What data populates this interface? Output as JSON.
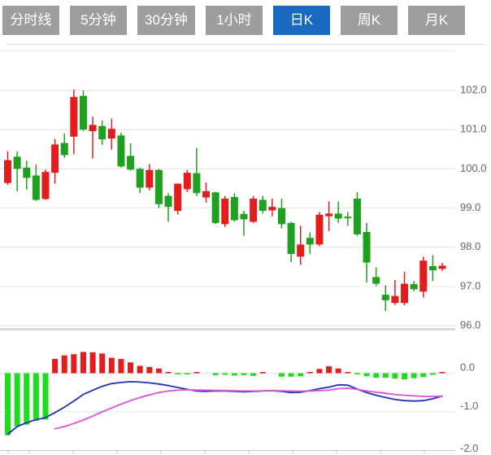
{
  "tabs": {
    "items": [
      {
        "label": "分时线",
        "active": false
      },
      {
        "label": "5分钟",
        "active": false
      },
      {
        "label": "30分钟",
        "active": false
      },
      {
        "label": "1小时",
        "active": false
      },
      {
        "label": "日K",
        "active": true
      },
      {
        "label": "周K",
        "active": false
      },
      {
        "label": "月K",
        "active": false
      }
    ]
  },
  "colors": {
    "tab_inactive_bg": "#9e9e9e",
    "tab_active_bg": "#1769c2",
    "tab_text": "#ffffff",
    "up_candle": "#e31d1d",
    "down_candle": "#1fa11f",
    "macd_bar_up": "#e31d1d",
    "macd_bar_down": "#1edc1e",
    "dif_line": "#2331b4",
    "dea_line": "#dc52dc",
    "grid_line": "#e3e3e3",
    "panel_separator": "#d9d9d9",
    "axis_line": "#c9c9c9",
    "axis_text": "#666666"
  },
  "chart_data": {
    "type": "candlestick",
    "title": "",
    "legend": "none",
    "grid": true,
    "price_panel": {
      "axis_position": "right",
      "tick_labels": [
        "102.0",
        "101.0",
        "100.0",
        "99.0",
        "98.0",
        "97.0",
        "96.0"
      ],
      "tick_values": [
        102.0,
        101.0,
        100.0,
        99.0,
        98.0,
        97.0,
        96.0
      ],
      "range": [
        95.8,
        103.1
      ],
      "candles_ochl_note": "arrays are [open,close,high,low]; close>open drawn red (up), close<open drawn green (down)",
      "candles": [
        [
          99.64,
          100.22,
          100.45,
          99.59
        ],
        [
          100.31,
          100.0,
          100.44,
          99.43
        ],
        [
          100.03,
          99.77,
          100.21,
          99.47
        ],
        [
          99.83,
          99.21,
          100.11,
          99.18
        ],
        [
          99.23,
          99.92,
          99.98,
          99.21
        ],
        [
          99.9,
          100.62,
          100.76,
          99.62
        ],
        [
          100.66,
          100.35,
          100.9,
          100.28
        ],
        [
          100.82,
          101.83,
          102.02,
          100.37
        ],
        [
          101.86,
          101.0,
          102.0,
          100.96
        ],
        [
          100.96,
          101.12,
          101.33,
          100.26
        ],
        [
          101.09,
          100.75,
          101.23,
          100.61
        ],
        [
          100.77,
          101.02,
          101.28,
          100.49
        ],
        [
          100.85,
          100.06,
          100.92,
          100.03
        ],
        [
          100.33,
          99.98,
          100.65,
          99.95
        ],
        [
          100.0,
          99.52,
          100.03,
          99.38
        ],
        [
          99.52,
          99.97,
          100.12,
          99.45
        ],
        [
          99.97,
          99.1,
          100.0,
          99.0
        ],
        [
          99.31,
          99.03,
          99.38,
          98.65
        ],
        [
          98.93,
          99.62,
          99.63,
          98.83
        ],
        [
          99.48,
          99.9,
          99.97,
          99.41
        ],
        [
          99.89,
          99.38,
          100.53,
          99.31
        ],
        [
          99.27,
          99.43,
          99.65,
          99.14
        ],
        [
          99.4,
          98.62,
          99.41,
          98.59
        ],
        [
          98.59,
          99.24,
          99.31,
          98.52
        ],
        [
          99.28,
          98.69,
          99.38,
          98.65
        ],
        [
          98.85,
          98.71,
          98.93,
          98.29
        ],
        [
          98.65,
          99.24,
          99.31,
          98.62
        ],
        [
          99.21,
          98.93,
          99.31,
          98.86
        ],
        [
          98.94,
          99.03,
          99.24,
          98.79
        ],
        [
          99.0,
          98.59,
          99.24,
          98.48
        ],
        [
          98.62,
          97.83,
          98.65,
          97.62
        ],
        [
          97.76,
          98.07,
          98.55,
          97.55
        ],
        [
          98.24,
          98.07,
          98.38,
          97.83
        ],
        [
          98.07,
          98.83,
          98.9,
          98.03
        ],
        [
          98.79,
          98.86,
          99.17,
          98.41
        ],
        [
          98.86,
          98.73,
          99.17,
          98.62
        ],
        [
          98.78,
          98.74,
          98.9,
          98.55
        ],
        [
          99.24,
          98.33,
          99.41,
          98.29
        ],
        [
          98.39,
          97.61,
          98.62,
          97.1
        ],
        [
          97.24,
          97.07,
          97.49,
          97.01
        ],
        [
          96.79,
          96.65,
          97.03,
          96.38
        ],
        [
          96.58,
          96.76,
          97.17,
          96.53
        ],
        [
          96.58,
          97.07,
          97.38,
          96.52
        ],
        [
          97.06,
          96.93,
          97.14,
          96.88
        ],
        [
          96.87,
          97.66,
          97.76,
          96.72
        ],
        [
          97.52,
          97.41,
          97.8,
          97.14
        ],
        [
          97.45,
          97.53,
          97.6,
          97.4
        ]
      ]
    },
    "macd_panel": {
      "axis_position": "right",
      "tick_labels": [
        "0.0",
        "-1.0",
        "-2.0"
      ],
      "tick_values": [
        0.0,
        -1.0,
        -2.0
      ],
      "range": [
        -2.1,
        0.7
      ],
      "histogram": [
        -1.6,
        -1.37,
        -1.33,
        -1.23,
        -1.2,
        0.37,
        0.46,
        0.49,
        0.55,
        0.54,
        0.51,
        0.4,
        0.37,
        0.28,
        0.19,
        0.16,
        0.12,
        0.03,
        -0.03,
        -0.03,
        0.02,
        0.0,
        -0.05,
        -0.04,
        -0.06,
        -0.05,
        -0.07,
        0.02,
        0.0,
        -0.09,
        -0.09,
        -0.08,
        0.03,
        0.11,
        0.18,
        0.12,
        0.03,
        -0.03,
        -0.08,
        -0.12,
        -0.12,
        -0.14,
        -0.16,
        -0.13,
        -0.1,
        -0.04,
        0.03
      ],
      "dif": [
        -1.58,
        -1.38,
        -1.28,
        -1.2,
        -1.15,
        -1.02,
        -0.88,
        -0.72,
        -0.55,
        -0.44,
        -0.34,
        -0.27,
        -0.24,
        -0.22,
        -0.23,
        -0.25,
        -0.28,
        -0.32,
        -0.37,
        -0.42,
        -0.46,
        -0.47,
        -0.46,
        -0.46,
        -0.47,
        -0.48,
        -0.47,
        -0.46,
        -0.45,
        -0.47,
        -0.5,
        -0.49,
        -0.45,
        -0.4,
        -0.36,
        -0.3,
        -0.31,
        -0.41,
        -0.5,
        -0.57,
        -0.63,
        -0.68,
        -0.71,
        -0.72,
        -0.71,
        -0.66,
        -0.59
      ],
      "dea": [
        null,
        null,
        null,
        null,
        null,
        -1.44,
        -1.38,
        -1.3,
        -1.21,
        -1.11,
        -1.0,
        -0.9,
        -0.8,
        -0.71,
        -0.63,
        -0.56,
        -0.5,
        -0.46,
        -0.44,
        -0.43,
        -0.435,
        -0.44,
        -0.445,
        -0.45,
        -0.455,
        -0.46,
        -0.46,
        -0.455,
        -0.45,
        -0.455,
        -0.46,
        -0.465,
        -0.46,
        -0.45,
        -0.44,
        -0.4,
        -0.39,
        -0.42,
        -0.46,
        -0.49,
        -0.52,
        -0.55,
        -0.57,
        -0.585,
        -0.6,
        -0.6,
        -0.595
      ]
    },
    "x_axis": {
      "labels": [],
      "ticks_visible": true,
      "tick_count": 11
    }
  }
}
